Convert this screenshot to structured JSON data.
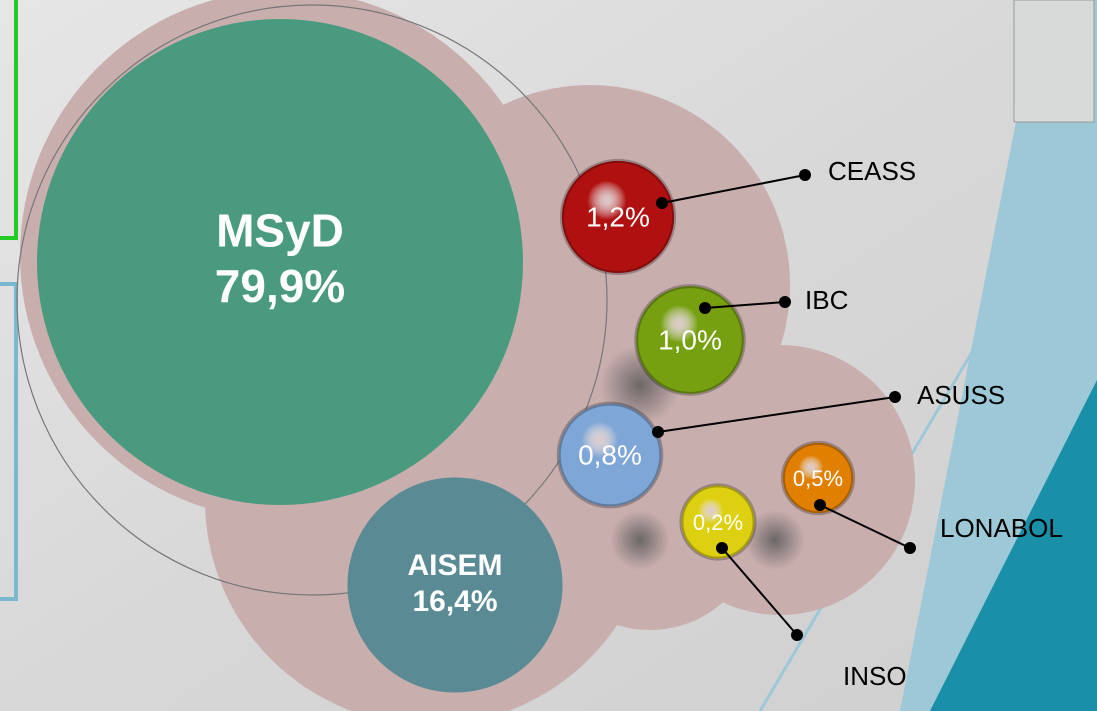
{
  "chart_data": {
    "type": "bubble",
    "categories": [
      "MSyD",
      "AISEM",
      "CEASS",
      "IBC",
      "ASUSS",
      "LONABOL",
      "INSO"
    ],
    "values": [
      79.9,
      16.4,
      1.2,
      1.0,
      0.8,
      0.5,
      0.2
    ],
    "value_labels": [
      "79,9%",
      "16,4%",
      "1,2%",
      "1,0%",
      "0,8%",
      "0,5%",
      "0,2%"
    ],
    "colors": [
      "#4a9a80",
      "#5a8b95",
      "#b01010",
      "#76a010",
      "#7ea6d6",
      "#e07f00",
      "#dcd010"
    ]
  }
}
